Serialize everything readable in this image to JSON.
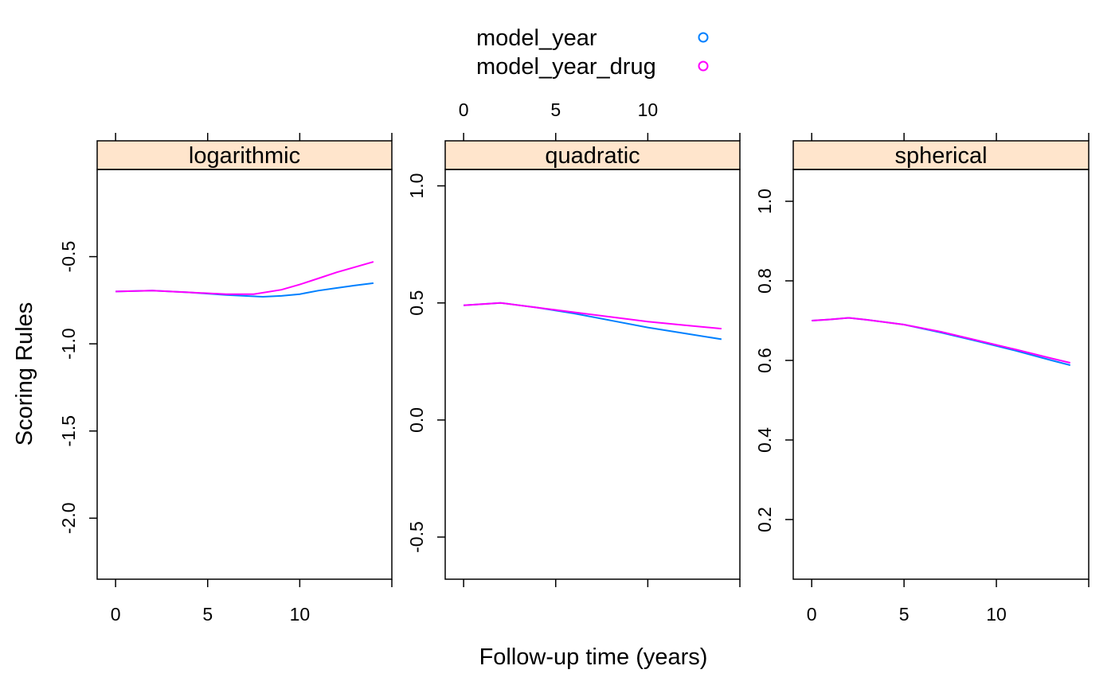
{
  "legend": {
    "entries": [
      {
        "label": "model_year",
        "color": "#0080ff"
      },
      {
        "label": "model_year_drug",
        "color": "#ff00ff"
      }
    ]
  },
  "xlabel": "Follow-up time (years)",
  "ylabel": "Scoring Rules",
  "colors": {
    "strip": "#ffe5cc",
    "axis": "#000000"
  },
  "chart_data": [
    {
      "type": "line",
      "title": "logarithmic",
      "xlim": [
        -1,
        15
      ],
      "ylim": [
        -2.35,
        0.0
      ],
      "xticks": [
        0,
        5,
        10
      ],
      "yticks": [
        -2.0,
        -1.5,
        -1.0,
        -0.5
      ],
      "ytick_labels": [
        "-2.0",
        "-1.5",
        "-1.0",
        "-0.5"
      ],
      "xtick_side": "bottom",
      "ytick_side": "left",
      "series": [
        {
          "name": "model_year",
          "x": [
            0,
            2,
            4,
            6,
            8,
            9,
            10,
            11,
            12,
            13,
            14
          ],
          "y": [
            -0.7,
            -0.695,
            -0.705,
            -0.72,
            -0.73,
            -0.725,
            -0.715,
            -0.695,
            -0.68,
            -0.665,
            -0.652
          ]
        },
        {
          "name": "model_year_drug",
          "x": [
            0,
            2,
            4,
            6,
            7.5,
            9,
            10,
            11,
            12,
            13,
            14
          ],
          "y": [
            -0.7,
            -0.695,
            -0.705,
            -0.715,
            -0.715,
            -0.69,
            -0.66,
            -0.625,
            -0.59,
            -0.56,
            -0.53
          ]
        }
      ]
    },
    {
      "type": "line",
      "title": "quadratic",
      "xlim": [
        -1,
        15
      ],
      "ylim": [
        -0.68,
        1.07
      ],
      "xticks": [
        0,
        5,
        10
      ],
      "yticks": [
        -0.5,
        0.0,
        0.5,
        1.0
      ],
      "ytick_labels": [
        "-0.5",
        "0.0",
        "0.5",
        "1.0"
      ],
      "xtick_side": "top",
      "ytick_side": "left",
      "series": [
        {
          "name": "model_year",
          "x": [
            0,
            1,
            2,
            4,
            6,
            8,
            10,
            12,
            14
          ],
          "y": [
            0.49,
            0.495,
            0.5,
            0.48,
            0.455,
            0.425,
            0.395,
            0.37,
            0.345
          ]
        },
        {
          "name": "model_year_drug",
          "x": [
            0,
            1,
            2,
            4,
            6,
            8,
            10,
            12,
            14
          ],
          "y": [
            0.49,
            0.495,
            0.5,
            0.48,
            0.46,
            0.44,
            0.42,
            0.405,
            0.39
          ]
        }
      ]
    },
    {
      "type": "line",
      "title": "spherical",
      "xlim": [
        -1,
        15
      ],
      "ylim": [
        0.05,
        1.08
      ],
      "xticks": [
        0,
        5,
        10
      ],
      "yticks": [
        0.2,
        0.4,
        0.6,
        0.8,
        1.0
      ],
      "ytick_labels": [
        "0.2",
        "0.4",
        "0.6",
        "0.8",
        "1.0"
      ],
      "xtick_side": "bottom",
      "ytick_side": "left",
      "series": [
        {
          "name": "model_year",
          "x": [
            0,
            1,
            2,
            3,
            5,
            7,
            9,
            11,
            13,
            14
          ],
          "y": [
            0.7,
            0.703,
            0.707,
            0.702,
            0.69,
            0.67,
            0.648,
            0.625,
            0.6,
            0.588
          ]
        },
        {
          "name": "model_year_drug",
          "x": [
            0,
            1,
            2,
            3,
            5,
            7,
            9,
            11,
            13,
            14
          ],
          "y": [
            0.7,
            0.703,
            0.707,
            0.702,
            0.69,
            0.672,
            0.65,
            0.628,
            0.605,
            0.594
          ]
        }
      ]
    }
  ]
}
